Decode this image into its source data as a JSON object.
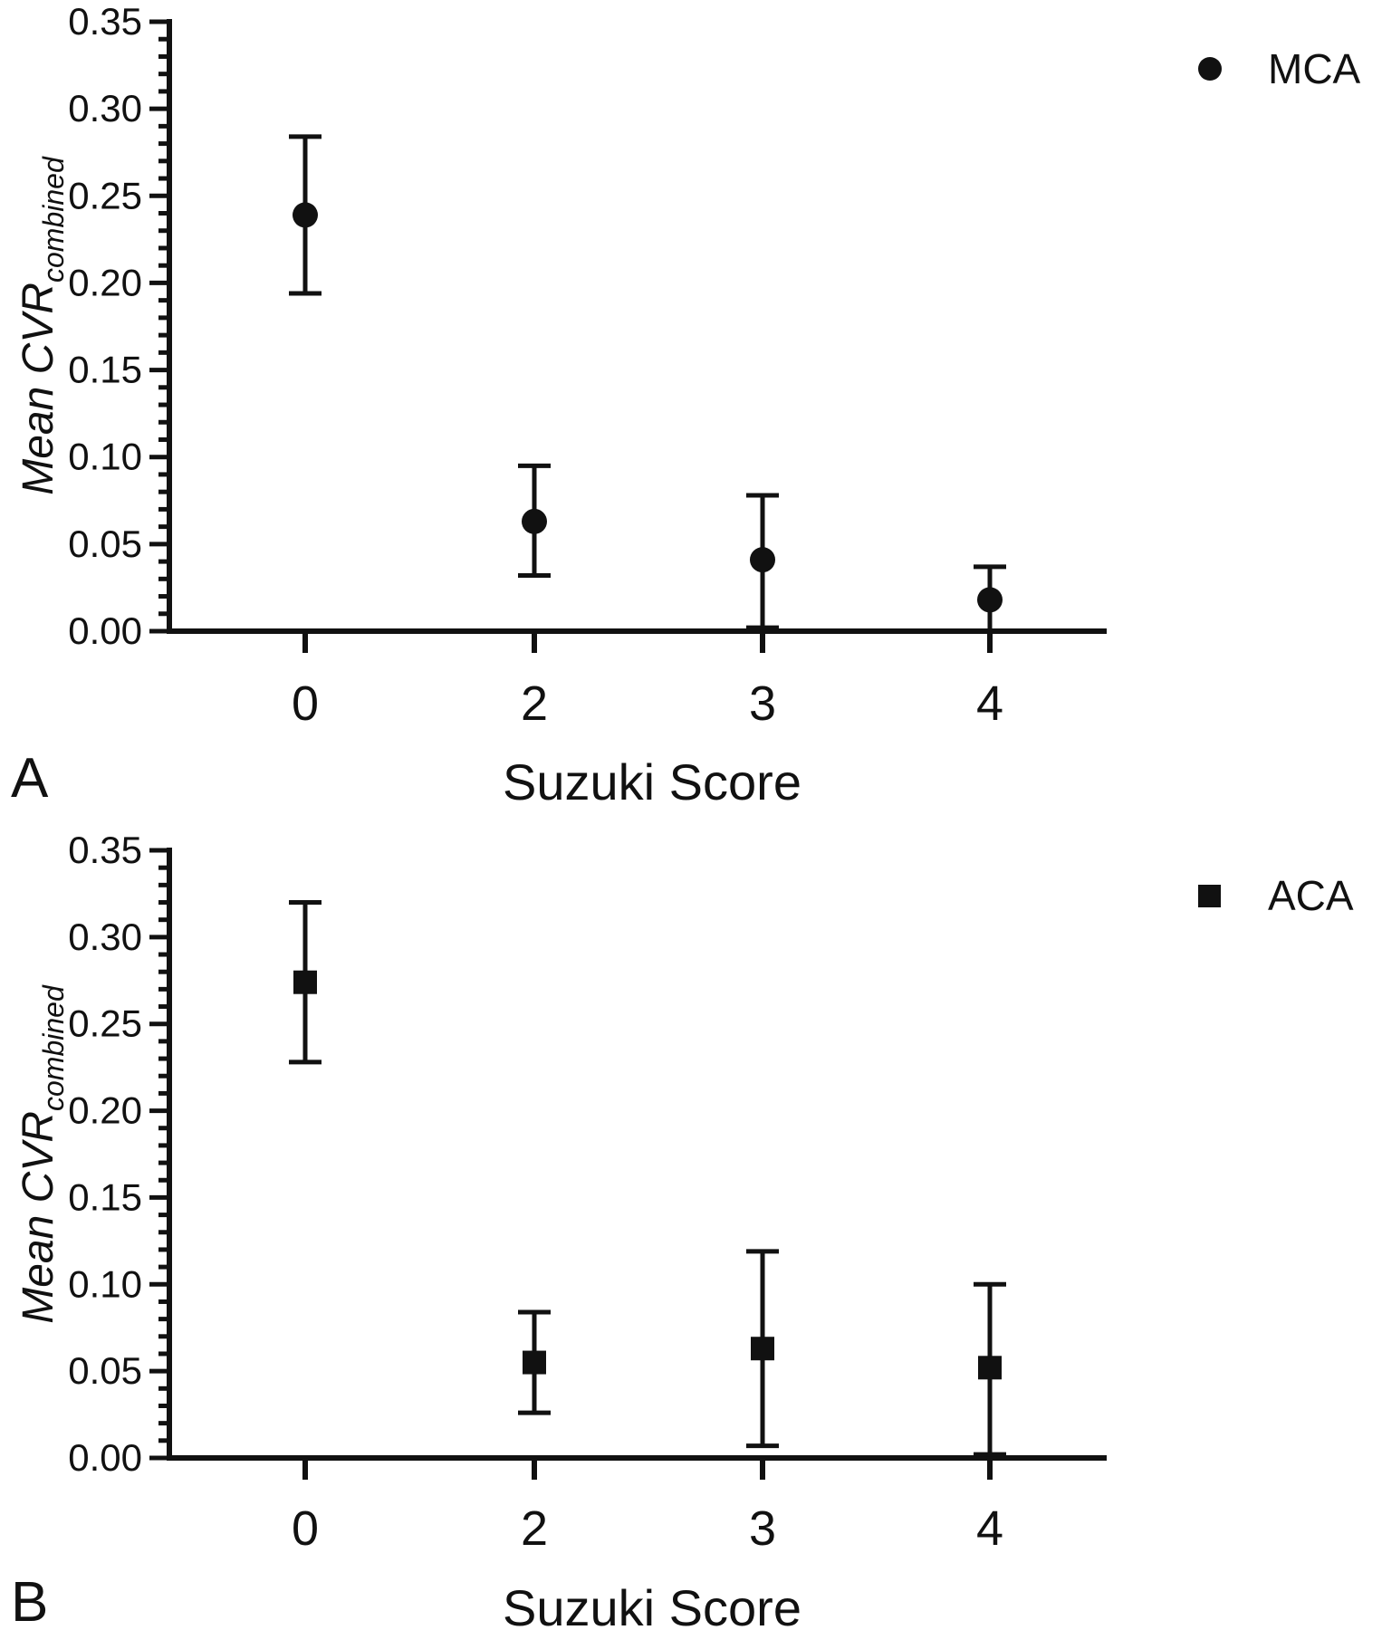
{
  "chart_data": [
    {
      "panel_label": "A",
      "type": "scatter",
      "xlabel": "Suzuki Score",
      "ylabel_main": "Mean CVR",
      "ylabel_sub": "combined",
      "categories": [
        "0",
        "2",
        "3",
        "4"
      ],
      "ylim": [
        0,
        0.35
      ],
      "yticks": [
        "0.00",
        "0.05",
        "0.10",
        "0.15",
        "0.20",
        "0.25",
        "0.30",
        "0.35"
      ],
      "marker": "circle",
      "series": [
        {
          "name": "MCA",
          "values": [
            0.239,
            0.063,
            0.041,
            0.018
          ],
          "err_low": [
            0.194,
            0.032,
            0.002,
            0.0
          ],
          "err_high": [
            0.284,
            0.095,
            0.078,
            0.037
          ]
        }
      ]
    },
    {
      "panel_label": "B",
      "type": "scatter",
      "xlabel": "Suzuki Score",
      "ylabel_main": "Mean CVR",
      "ylabel_sub": "combined",
      "categories": [
        "0",
        "2",
        "3",
        "4"
      ],
      "ylim": [
        0,
        0.35
      ],
      "yticks": [
        "0.00",
        "0.05",
        "0.10",
        "0.15",
        "0.20",
        "0.25",
        "0.30",
        "0.35"
      ],
      "marker": "square",
      "series": [
        {
          "name": "ACA",
          "values": [
            0.274,
            0.055,
            0.063,
            0.052
          ],
          "err_low": [
            0.228,
            0.026,
            0.007,
            0.002
          ],
          "err_high": [
            0.32,
            0.084,
            0.119,
            0.1
          ]
        }
      ]
    }
  ]
}
